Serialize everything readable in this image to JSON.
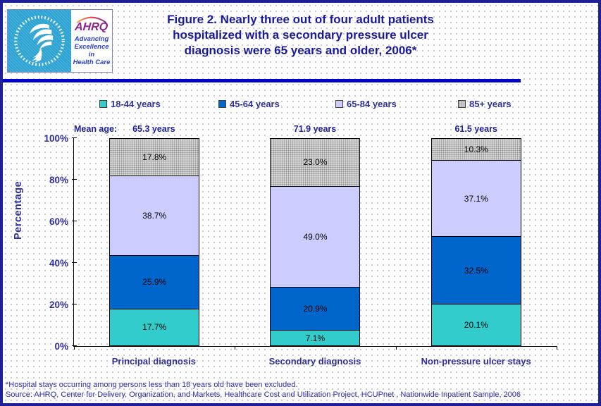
{
  "header": {
    "logo": {
      "ahrq_word": "AHRQ",
      "tagline_lines": [
        "Advancing",
        "Excellence in",
        "Health Care"
      ]
    },
    "title_lines": [
      "Figure 2. Nearly three out of four adult patients",
      "hospitalized with a secondary pressure ulcer",
      "diagnosis were 65 years and older, 2006*"
    ]
  },
  "colors": {
    "page_border": "#1f1f99",
    "header_divider": "#0000cc",
    "title_text": "#1a1a9c",
    "axis_text": "#30309a",
    "series_18_44": "#33cccc",
    "series_45_64": "#0066cc",
    "series_65_84": "#ccccff",
    "series_85_plus": "#d6d6d6"
  },
  "chart_data": {
    "type": "bar",
    "stacked": true,
    "title": "Figure 2. Nearly three out of four adult patients hospitalized with a secondary pressure ulcer diagnosis were 65 years and older, 2006*",
    "categories": [
      "Principal diagnosis",
      "Secondary diagnosis",
      "Non-pressure ulcer stays"
    ],
    "series": [
      {
        "name": "18-44 years",
        "color": "#33cccc",
        "values": [
          17.7,
          7.1,
          20.1
        ]
      },
      {
        "name": "45-64 years",
        "color": "#0066cc",
        "values": [
          25.9,
          20.9,
          32.5
        ]
      },
      {
        "name": "65-84 years",
        "color": "#ccccff",
        "values": [
          38.7,
          49.0,
          37.1
        ]
      },
      {
        "name": "85+ years",
        "color": "#d6d6d6",
        "pattern": "dots",
        "values": [
          17.8,
          23.0,
          10.3
        ]
      }
    ],
    "mean_age": {
      "label": "Mean age:",
      "values": [
        "65.3 years",
        "71.9 years",
        "61.5 years"
      ]
    },
    "ylabel": "Percentage",
    "yticks": [
      "0%",
      "20%",
      "40%",
      "60%",
      "80%",
      "100%"
    ],
    "ylim": [
      0,
      100
    ],
    "grid": false,
    "legend_position": "top"
  },
  "footnotes": [
    "*Hospital stays occurring among persons less than 18 years old have been excluded.",
    "Source: AHRQ, Center for Delivery, Organization, and Markets, Healthcare Cost and Utilization Project, HCUPnet , Nationwide Inpatient Sample, 2006"
  ]
}
